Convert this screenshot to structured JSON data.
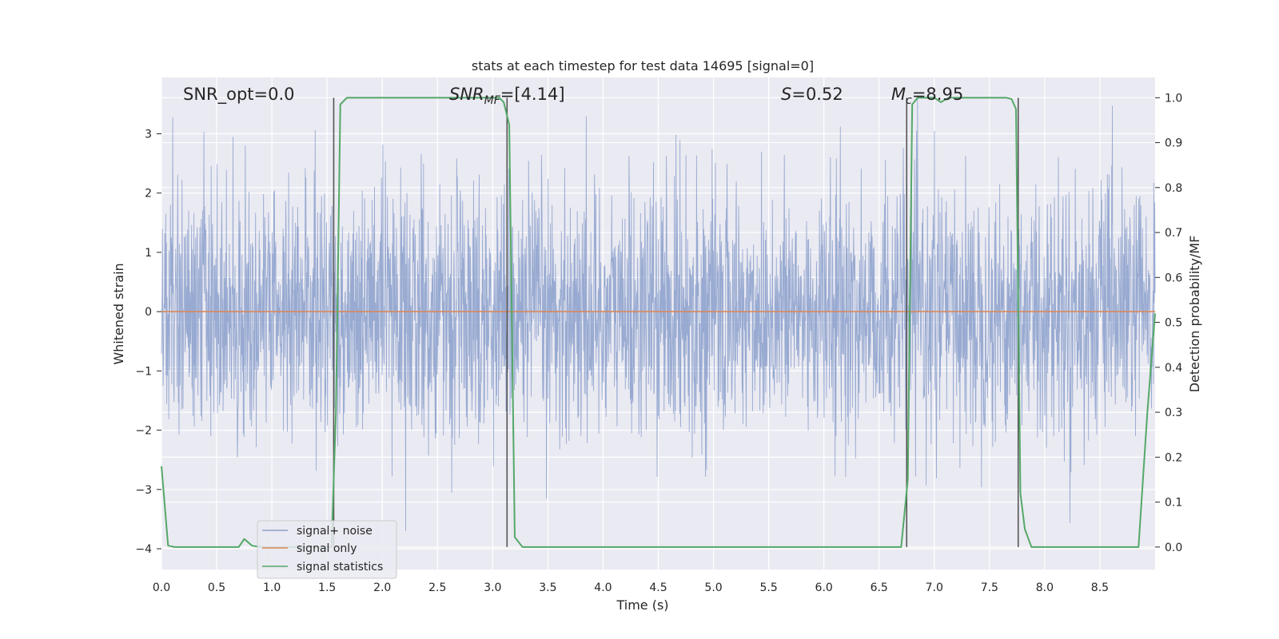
{
  "chart_data": {
    "type": "line",
    "title": "stats at each timestep for test data 14695 [signal=0]",
    "xlabel": "Time (s)",
    "ylabel": "Whitened strain",
    "y2label": "Detection probability/MF",
    "xlim": [
      0.0,
      9.0
    ],
    "ylim": [
      -4.35,
      3.95
    ],
    "y2lim": [
      -0.05,
      1.045
    ],
    "x_ticks": [
      0.0,
      0.5,
      1.0,
      1.5,
      2.0,
      2.5,
      3.0,
      3.5,
      4.0,
      4.5,
      5.0,
      5.5,
      6.0,
      6.5,
      7.0,
      7.5,
      8.0,
      8.5
    ],
    "x_tick_labels": [
      "0.0",
      "0.5",
      "1.0",
      "1.5",
      "2.0",
      "2.5",
      "3.0",
      "3.5",
      "4.0",
      "4.5",
      "5.0",
      "5.5",
      "6.0",
      "6.5",
      "7.0",
      "7.5",
      "8.0",
      "8.5"
    ],
    "y_ticks": [
      3,
      2,
      1,
      0,
      -1,
      -2,
      -3,
      -4
    ],
    "y_tick_labels": [
      "3",
      "2",
      "1",
      "0",
      "−1",
      "−2",
      "−3",
      "−4"
    ],
    "y2_ticks": [
      1.0,
      0.9,
      0.8,
      0.7,
      0.6,
      0.5,
      0.4,
      0.3,
      0.2,
      0.1,
      0.0
    ],
    "y2_tick_labels": [
      "1.0",
      "0.9",
      "0.8",
      "0.7",
      "0.6",
      "0.5",
      "0.4",
      "0.3",
      "0.2",
      "0.1",
      "0.0"
    ],
    "grid": true,
    "legend_placement": "lower-left",
    "series": [
      {
        "name": "signal+ noise",
        "color": "#8a9fcb",
        "axis": "left",
        "description_of_values": "dense noise, amplitude range approx -3.7 to 3.6",
        "noise_std": 1.0,
        "y_min": -3.7,
        "y_max": 3.6
      },
      {
        "name": "signal only",
        "color": "#dd8452",
        "axis": "left",
        "x": [
          0.0,
          9.0
        ],
        "y": [
          0.0,
          0.0
        ]
      },
      {
        "name": "signal statistics",
        "color": "#55a868",
        "axis": "right",
        "x": [
          0.0,
          0.06,
          0.12,
          0.7,
          0.75,
          0.82,
          0.9,
          1.0,
          1.2,
          1.4,
          1.54,
          1.58,
          1.62,
          1.68,
          1.75,
          2.0,
          2.5,
          3.0,
          3.06,
          3.1,
          3.15,
          3.2,
          3.27,
          3.5,
          4.0,
          4.5,
          5.0,
          5.5,
          6.0,
          6.5,
          6.7,
          6.76,
          6.8,
          6.85,
          7.0,
          7.06,
          7.13,
          7.3,
          7.5,
          7.65,
          7.7,
          7.74,
          7.78,
          7.82,
          7.88,
          8.0,
          8.5,
          8.85,
          8.93,
          9.0
        ],
        "y": [
          0.18,
          0.003,
          0.0,
          0.0,
          0.018,
          0.003,
          0.0,
          0.0,
          0.0,
          0.0,
          0.0,
          0.3,
          0.985,
          1.0,
          1.0,
          1.0,
          1.0,
          1.0,
          1.0,
          0.99,
          0.94,
          0.022,
          0.0,
          0.0,
          0.0,
          0.0,
          0.0,
          0.0,
          0.0,
          0.0,
          0.0,
          0.15,
          0.985,
          1.0,
          1.0,
          0.99,
          1.0,
          1.0,
          1.0,
          1.0,
          0.997,
          0.975,
          0.12,
          0.04,
          0.0,
          0.0,
          0.0,
          0.0,
          0.3,
          0.52
        ]
      }
    ],
    "vlines_x": [
      1.56,
      3.13,
      6.75,
      7.76
    ],
    "vlines_y_range": [
      0.0,
      1.0
    ],
    "annotations": [
      {
        "x": 0.19,
        "text": "SNR_opt=0.0"
      },
      {
        "x": 2.6,
        "text": "SNR_{MF}=[4.14]"
      },
      {
        "x": 5.6,
        "text": "S=0.52"
      },
      {
        "x": 6.6,
        "text": "M_c=8.95"
      }
    ],
    "annotation_parts": {
      "snr_mf_main": "SNR",
      "snr_mf_sub": "MF",
      "snr_mf_value": "=[4.14]",
      "s_main": "S",
      "s_value": "=0.52",
      "mc_main": "M",
      "mc_sub": "c",
      "mc_value": "=8.95",
      "snr_opt": "SNR_opt=0.0"
    }
  },
  "colors": {
    "plot_bg": "#eaeaf2",
    "grid": "#ffffff",
    "noise": "#8a9fcb",
    "signal_only": "#dd8452",
    "stats": "#55a868",
    "vline": "#555555"
  }
}
